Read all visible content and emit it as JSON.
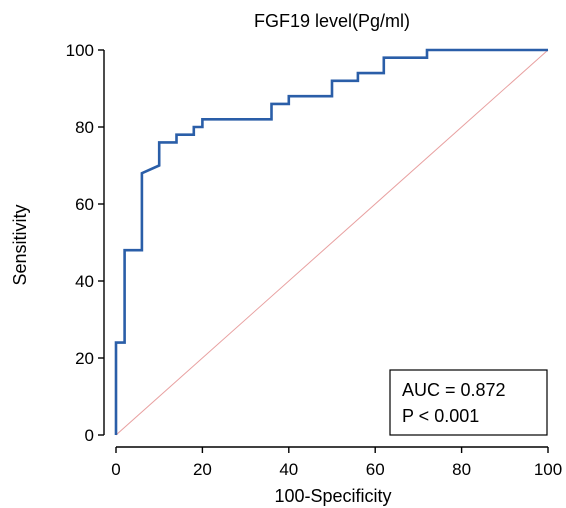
{
  "chart_data": {
    "type": "line",
    "title": "FGF19 level(Pg/ml)",
    "xlabel": "100-Specificity",
    "ylabel": "Sensitivity",
    "xlim": [
      0,
      100
    ],
    "ylim": [
      0,
      100
    ],
    "xticks": [
      0,
      20,
      40,
      60,
      80,
      100
    ],
    "yticks": [
      0,
      20,
      40,
      60,
      80,
      100
    ],
    "grid": false,
    "series": [
      {
        "color": "#2a5ea8",
        "x": [
          0,
          0,
          2,
          2,
          2,
          6,
          6,
          10,
          10,
          14,
          14,
          18,
          18,
          20,
          20,
          36,
          36,
          40,
          40,
          50,
          50,
          56,
          56,
          62,
          62,
          72,
          72,
          100
        ],
        "y": [
          0,
          24,
          24,
          38,
          48,
          48,
          68,
          70,
          76,
          76,
          78,
          78,
          80,
          80,
          82,
          82,
          86,
          86,
          88,
          88,
          92,
          92,
          94,
          94,
          98,
          98,
          100,
          100
        ]
      },
      {
        "color": "#e8a0a0",
        "x": [
          0,
          100
        ],
        "y": [
          0,
          100
        ]
      }
    ],
    "annotation": {
      "lines": [
        "AUC = 0.872",
        "P < 0.001"
      ]
    }
  }
}
